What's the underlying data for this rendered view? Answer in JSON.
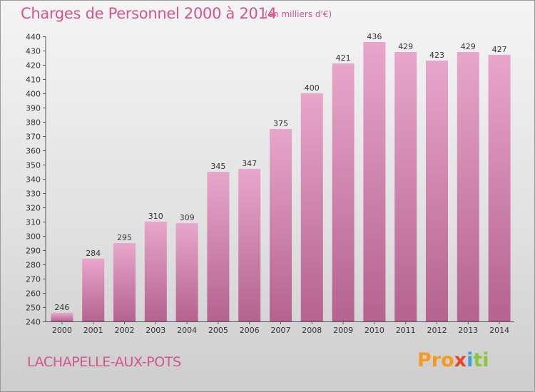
{
  "header": {
    "title": "Charges de Personnel 2000 à 2014",
    "unit": "(en milliers d'€)"
  },
  "footer": {
    "commune": "LACHAPELLE-AUX-POTS",
    "logo": [
      "Pro",
      "x",
      "i",
      "ti"
    ]
  },
  "colors": {
    "accent": "#d2558e",
    "bar_top": "#e8a6cb",
    "bar_bottom": "#b4638e"
  },
  "chart_data": {
    "type": "bar",
    "categories": [
      "2000",
      "2001",
      "2002",
      "2003",
      "2004",
      "2005",
      "2006",
      "2007",
      "2008",
      "2009",
      "2010",
      "2011",
      "2012",
      "2013",
      "2014"
    ],
    "values": [
      246,
      284,
      295,
      310,
      309,
      345,
      347,
      375,
      400,
      421,
      436,
      429,
      423,
      429,
      427
    ],
    "ylim": [
      240,
      440
    ],
    "ytick_step": 10,
    "grid": false
  }
}
